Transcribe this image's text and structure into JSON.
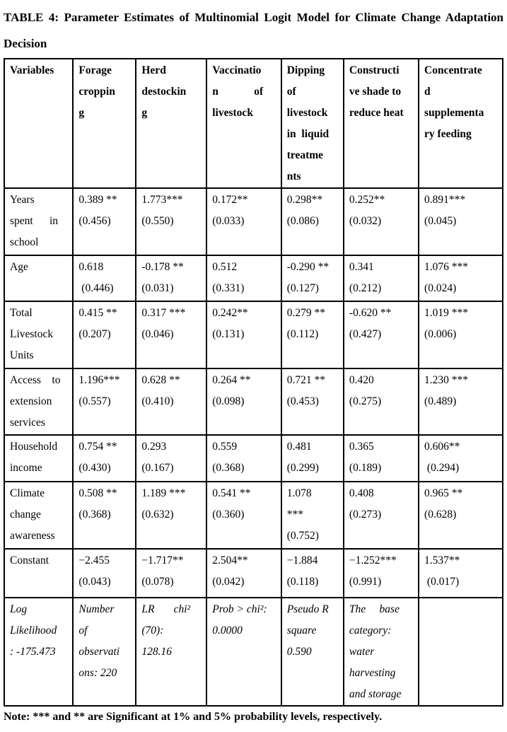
{
  "title": "TABLE 4: Parameter Estimates of Multinomial Logit Model for Climate Change Adaptation Decision",
  "table": {
    "columns": [
      "Variables",
      "Forage\ncroppin\ng",
      "Herd\ndestockin\ng",
      "Vaccinatio\nn             of\nlivestock",
      "Dipping\nof\nlivestock\nin  liquid\ntreatme\nnts",
      "Constructi\nve shade to\nreduce heat",
      "Concentrate\nd\nsupplementa\nry feeding"
    ],
    "rows": [
      {
        "label": "Years\nspent      in\nschool",
        "cells": [
          "0.389 **\n(0.456)",
          "1.773***\n(0.550)",
          "0.172**\n(0.033)",
          "0.298**\n(0.086)",
          "0.252**\n(0.032)",
          "0.891***\n(0.045)"
        ]
      },
      {
        "label": "Age",
        "cells": [
          "0.618\n (0.446)",
          "-0.178 **\n(0.031)",
          "0.512\n(0.331)",
          "-0.290 **\n(0.127)",
          "0.341\n(0.212)",
          "1.076 ***\n(0.024)"
        ]
      },
      {
        "label": "Total\nLivestock\nUnits",
        "cells": [
          "0.415 **\n(0.207)",
          "0.317 ***\n(0.046)",
          "0.242**\n(0.131)",
          "0.279 **\n(0.112)",
          "-0.620 **\n(0.427)",
          "1.019 ***\n(0.006)"
        ]
      },
      {
        "label": "Access    to\nextension\nservices",
        "cells": [
          "1.196***\n(0.557)",
          "0.628 **\n(0.410)",
          "0.264 **\n(0.098)",
          "0.721 **\n(0.453)",
          "0.420\n(0.275)",
          "1.230 ***\n(0.489)"
        ]
      },
      {
        "label": "Household\nincome",
        "cells": [
          "0.754 **\n(0.430)",
          "0.293\n(0.167)",
          "0.559\n(0.368)",
          "0.481\n(0.299)",
          "0.365\n(0.189)",
          "0.606**\n (0.294)"
        ]
      },
      {
        "label": "Climate\nchange\nawareness",
        "cells": [
          "0.508 **\n(0.368)",
          "1.189 ***\n(0.632)",
          "0.541 **\n(0.360)",
          "1.078\n***\n(0.752)",
          "0.408\n(0.273)",
          "0.965 **\n(0.628)"
        ]
      },
      {
        "label": "Constant",
        "cells": [
          "−2.455\n(0.043)",
          "−1.717**\n(0.078)",
          "2.504**\n(0.042)",
          "−1.884\n(0.118)",
          "−1.252***\n(0.991)",
          "1.537**\n (0.017)"
        ]
      }
    ],
    "stats": [
      "Log\nLikelihood\n: -175.473",
      "Number\nof\nobservati\nons: 220",
      "LR       chi²\n(70):\n128.16",
      "Prob > chi²:\n0.0000",
      "Pseudo R\nsquare\n0.590",
      "The     base\ncategory:\nwater\nharvesting\nand storage",
      ""
    ]
  },
  "note": "Note: *** and ** are Significant at 1% and 5% probability levels, respectively."
}
